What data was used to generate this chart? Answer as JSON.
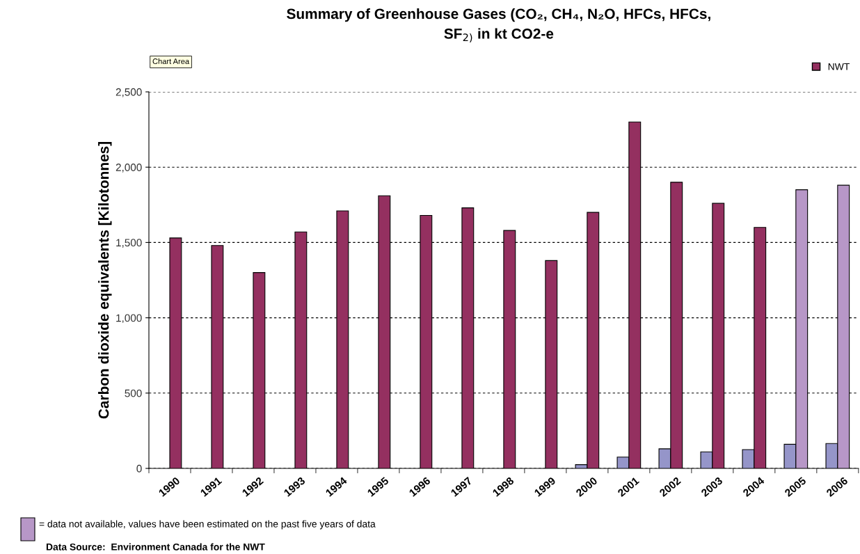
{
  "chart_data": {
    "type": "bar",
    "title": "Summary of Greenhouse Gases (CO₂, CH₄, N₂O, HFCs, HFCs,\nSF$_{2)}$ in kt CO2-e",
    "ylabel": "Carbon dioxide equivalents [Kilotonnes]",
    "categories": [
      "1990",
      "1991",
      "1992",
      "1993",
      "1994",
      "1995",
      "1996",
      "1997",
      "1998",
      "1999",
      "2000",
      "2001",
      "2002",
      "2003",
      "2004",
      "2005",
      "2006"
    ],
    "series": [
      {
        "color": "#9595c9",
        "values": [
          null,
          null,
          null,
          null,
          null,
          null,
          null,
          null,
          null,
          null,
          25,
          75,
          130,
          110,
          125,
          160,
          165
        ]
      },
      {
        "name": "NWT",
        "color": "#943060",
        "colors": [
          "#943060",
          "#943060",
          "#943060",
          "#943060",
          "#943060",
          "#943060",
          "#943060",
          "#943060",
          "#943060",
          "#943060",
          "#943060",
          "#943060",
          "#943060",
          "#943060",
          "#943060",
          "#b797c7",
          "#b797c7"
        ],
        "values": [
          1530,
          1480,
          1300,
          1570,
          1710,
          1810,
          1680,
          1730,
          1580,
          1380,
          1700,
          2300,
          1900,
          1760,
          1600,
          1850,
          1880
        ]
      }
    ],
    "ylim": [
      0,
      2500
    ],
    "yticks": [
      0,
      {
        "value": 500,
        "label": "500"
      },
      {
        "value": 1000,
        "label": "1,000"
      },
      {
        "value": 1500,
        "label": "1,500"
      },
      {
        "value": 2000,
        "label": "2,000"
      },
      {
        "value": 2500,
        "label": "2,500"
      }
    ],
    "grid": "y",
    "legend": "top right",
    "annotations": [
      "Chart Area",
      "= data not available, values have been estimated on the past five years of data",
      "Data Source:  Environment Canada for the NWT"
    ]
  }
}
